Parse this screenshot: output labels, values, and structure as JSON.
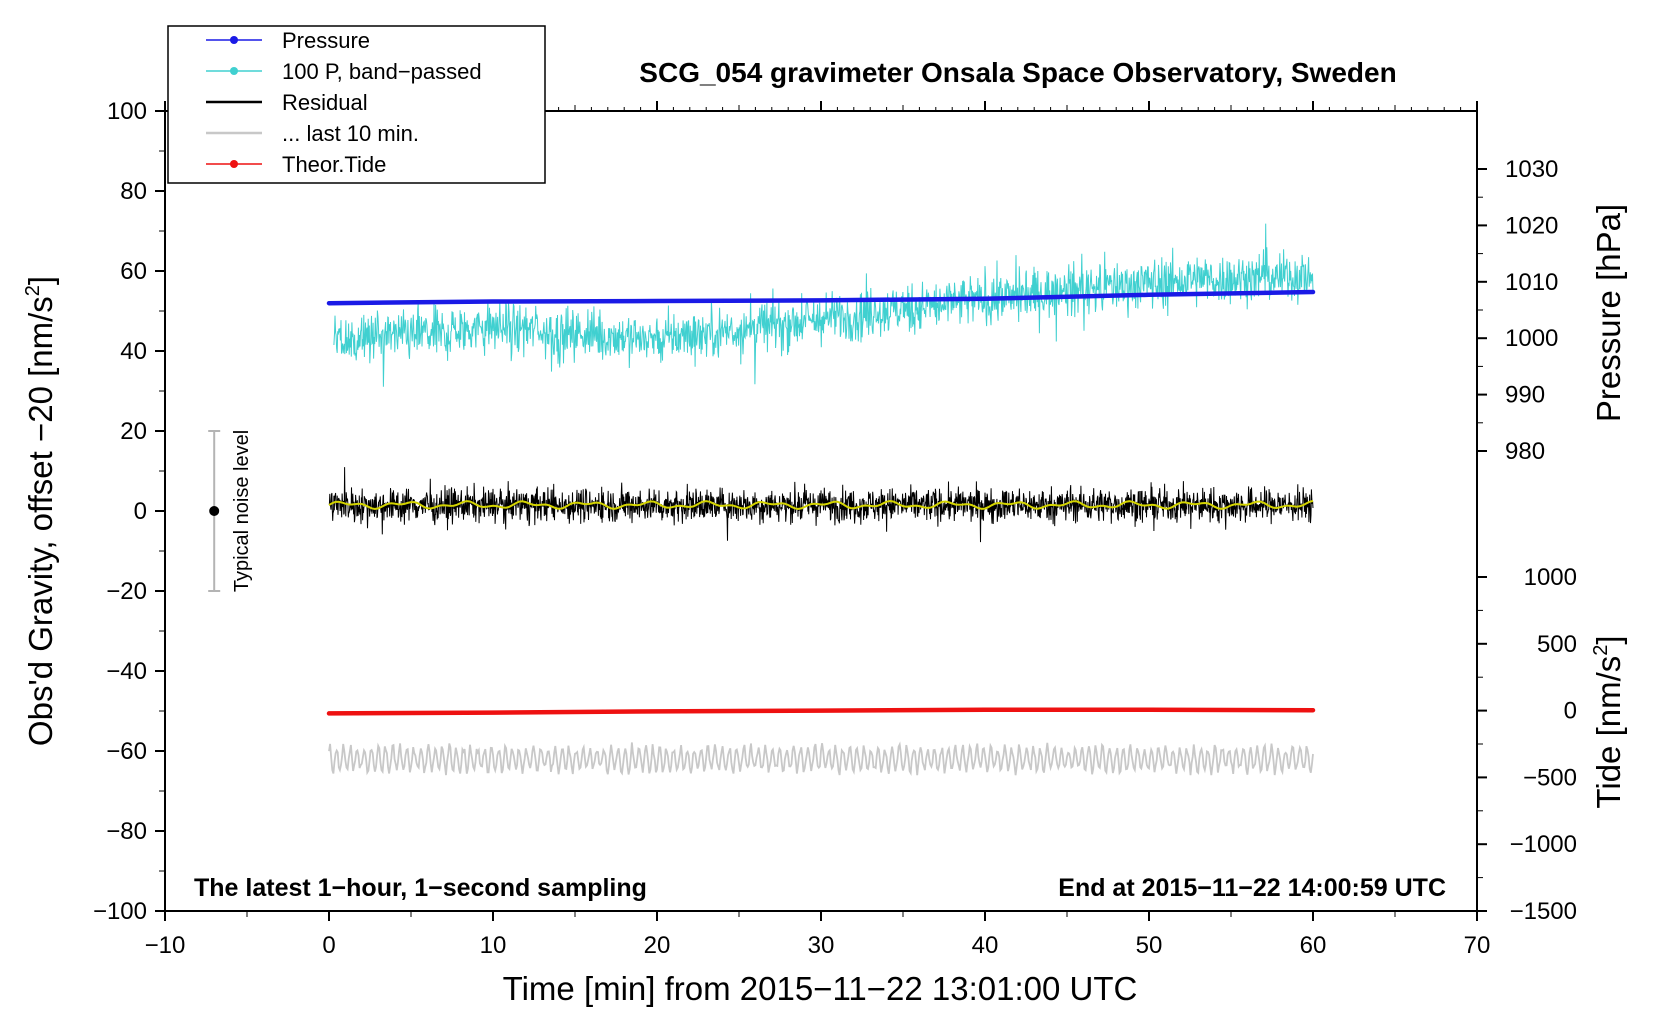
{
  "chart_data": {
    "type": "line",
    "title": "SCG_054 gravimeter Onsala Space Observatory, Sweden",
    "xlabel": "Time [min] from 2015−11−22 13:01:00 UTC",
    "ylabel": "Obs'd Gravity, offset −20 [nm/s",
    "ylabel_sup": "2",
    "ylabel_end": "]",
    "xlim": [
      -10,
      70
    ],
    "ylim": [
      -100,
      100
    ],
    "x_ticks": [
      -10,
      0,
      10,
      20,
      30,
      40,
      50,
      60,
      70
    ],
    "x_tick_labels": [
      "−10",
      "0",
      "10",
      "20",
      "30",
      "40",
      "50",
      "60",
      "70"
    ],
    "y_ticks": [
      100,
      80,
      60,
      40,
      20,
      0,
      -20,
      -40,
      -60,
      -80,
      -100
    ],
    "y_tick_labels": [
      "100",
      "80",
      "60",
      "40",
      "20",
      "0",
      "−20",
      "−40",
      "−60",
      "−80",
      "−100"
    ],
    "right_axes": [
      {
        "label": "Pressure [hPa]",
        "ticks": [
          1030,
          1020,
          1010,
          1000,
          990,
          980
        ],
        "tick_labels": [
          "1030",
          "1020",
          "1010",
          "1000",
          "990",
          "980"
        ],
        "mapping": {
          "value": [
            1030,
            980
          ],
          "y": [
            85.5,
            15
          ]
        }
      },
      {
        "label": "Tide [nm/s",
        "label_sup": "2",
        "label_end": "]",
        "ticks": [
          1000,
          500,
          0,
          -500,
          -1000,
          -1500
        ],
        "tick_labels": [
          "1000",
          "500",
          "0",
          "−500",
          "−1000",
          "−1500"
        ],
        "mapping": {
          "value": [
            1000,
            -1500
          ],
          "y": [
            -16.5,
            -100
          ]
        }
      }
    ],
    "series": [
      {
        "name": "Pressure",
        "color": "#1a1ae6",
        "x": [
          0,
          10,
          20,
          30,
          40,
          50,
          60
        ],
        "y": [
          1006.2,
          1006.5,
          1006.6,
          1006.7,
          1007.0,
          1007.7,
          1008.2
        ]
      },
      {
        "name": "100 P, band−passed",
        "color": "#40d0d0",
        "x_range": [
          0.3,
          60
        ],
        "level": [
          42,
          46,
          43,
          48,
          53,
          57,
          59
        ],
        "amplitude": 5
      },
      {
        "name": "Residual",
        "color": "#000000",
        "x_range": [
          0,
          60
        ],
        "level": 1.5,
        "amplitude": 4
      },
      {
        "name": "... last 10 min.",
        "color": "#c8c8c8",
        "x_range": [
          0,
          60
        ],
        "level": -62,
        "amplitude": 3
      },
      {
        "name": "Theor.Tide",
        "color": "#ee1111",
        "x": [
          0,
          10,
          20,
          30,
          40,
          50,
          60
        ],
        "y": [
          -50.6,
          -50.4,
          -50.1,
          -49.9,
          -49.7,
          -49.7,
          -49.8
        ]
      }
    ],
    "smoothed_residual": {
      "color": "#d4d400",
      "level": 1.5
    },
    "noise_bar": {
      "label": "Typical noise level",
      "x": -7,
      "center": 0,
      "low": -20,
      "high": 20
    },
    "annotations": {
      "left": "The latest 1−hour, 1−second sampling",
      "right": "End at 2015−11−22 14:00:59 UTC"
    },
    "legend_position": "top-left",
    "grid": false
  }
}
